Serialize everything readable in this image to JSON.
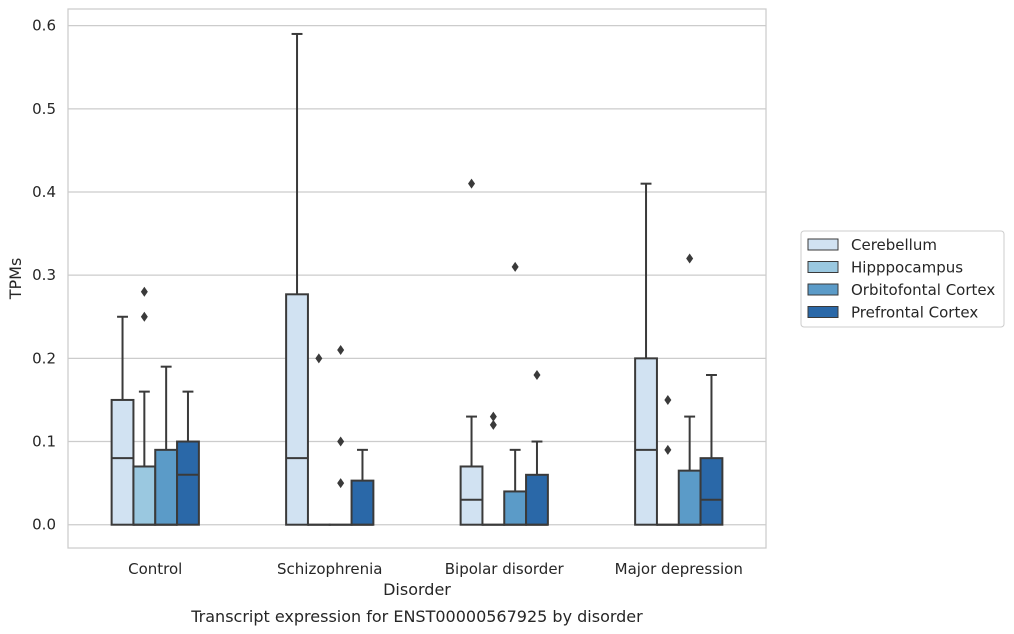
{
  "chart_data": {
    "type": "box",
    "caption": "Transcript expression for ENST00000567925 by disorder",
    "xlabel": "Disorder",
    "ylabel": "TPMs",
    "ylim": [
      -0.028,
      0.62
    ],
    "yticks": [
      0.0,
      0.1,
      0.2,
      0.3,
      0.4,
      0.5,
      0.6
    ],
    "ytick_labels": [
      "0.0",
      "0.1",
      "0.2",
      "0.3",
      "0.4",
      "0.5",
      "0.6"
    ],
    "grid": "horizontal",
    "legend_position": "right",
    "categories": [
      "Control",
      "Schizophrenia",
      "Bipolar disorder",
      "Major depression"
    ],
    "series": [
      {
        "name": "Cerebellum",
        "color": "#d1e2f2",
        "boxes": [
          {
            "q1": 0.0,
            "median": 0.08,
            "q3": 0.15,
            "whisker_low": 0.0,
            "whisker_high": 0.25,
            "outliers": []
          },
          {
            "q1": 0.0,
            "median": 0.08,
            "q3": 0.277,
            "whisker_low": 0.0,
            "whisker_high": 0.59,
            "outliers": []
          },
          {
            "q1": 0.0,
            "median": 0.03,
            "q3": 0.07,
            "whisker_low": 0.0,
            "whisker_high": 0.13,
            "outliers": [
              0.41
            ]
          },
          {
            "q1": 0.0,
            "median": 0.09,
            "q3": 0.2,
            "whisker_low": 0.0,
            "whisker_high": 0.41,
            "outliers": []
          }
        ]
      },
      {
        "name": "Hipppocampus",
        "color": "#9ac8e0",
        "boxes": [
          {
            "q1": 0.0,
            "median": 0.0,
            "q3": 0.07,
            "whisker_low": 0.0,
            "whisker_high": 0.16,
            "outliers": [
              0.25,
              0.28
            ]
          },
          {
            "q1": 0.0,
            "median": 0.0,
            "q3": 0.0,
            "whisker_low": 0.0,
            "whisker_high": 0.0,
            "outliers": [
              0.2
            ]
          },
          {
            "q1": 0.0,
            "median": 0.0,
            "q3": 0.0,
            "whisker_low": 0.0,
            "whisker_high": 0.0,
            "outliers": [
              0.12,
              0.13
            ]
          },
          {
            "q1": 0.0,
            "median": 0.0,
            "q3": 0.0,
            "whisker_low": 0.0,
            "whisker_high": 0.0,
            "outliers": [
              0.09,
              0.15
            ]
          }
        ]
      },
      {
        "name": "Orbitofontal Cortex",
        "color": "#5b9bc8",
        "boxes": [
          {
            "q1": 0.0,
            "median": 0.0,
            "q3": 0.09,
            "whisker_low": 0.0,
            "whisker_high": 0.19,
            "outliers": []
          },
          {
            "q1": 0.0,
            "median": 0.0,
            "q3": 0.0,
            "whisker_low": 0.0,
            "whisker_high": 0.0,
            "outliers": [
              0.05,
              0.1,
              0.21
            ]
          },
          {
            "q1": 0.0,
            "median": 0.0,
            "q3": 0.04,
            "whisker_low": 0.0,
            "whisker_high": 0.09,
            "outliers": [
              0.31
            ]
          },
          {
            "q1": 0.0,
            "median": 0.0,
            "q3": 0.065,
            "whisker_low": 0.0,
            "whisker_high": 0.13,
            "outliers": [
              0.32
            ]
          }
        ]
      },
      {
        "name": "Prefrontal Cortex",
        "color": "#2a68a8",
        "boxes": [
          {
            "q1": 0.0,
            "median": 0.06,
            "q3": 0.1,
            "whisker_low": 0.0,
            "whisker_high": 0.16,
            "outliers": []
          },
          {
            "q1": 0.0,
            "median": 0.0,
            "q3": 0.053,
            "whisker_low": 0.0,
            "whisker_high": 0.09,
            "outliers": []
          },
          {
            "q1": 0.0,
            "median": 0.0,
            "q3": 0.06,
            "whisker_low": 0.0,
            "whisker_high": 0.1,
            "outliers": [
              0.18
            ]
          },
          {
            "q1": 0.0,
            "median": 0.03,
            "q3": 0.08,
            "whisker_low": 0.0,
            "whisker_high": 0.18,
            "outliers": []
          }
        ]
      }
    ]
  }
}
